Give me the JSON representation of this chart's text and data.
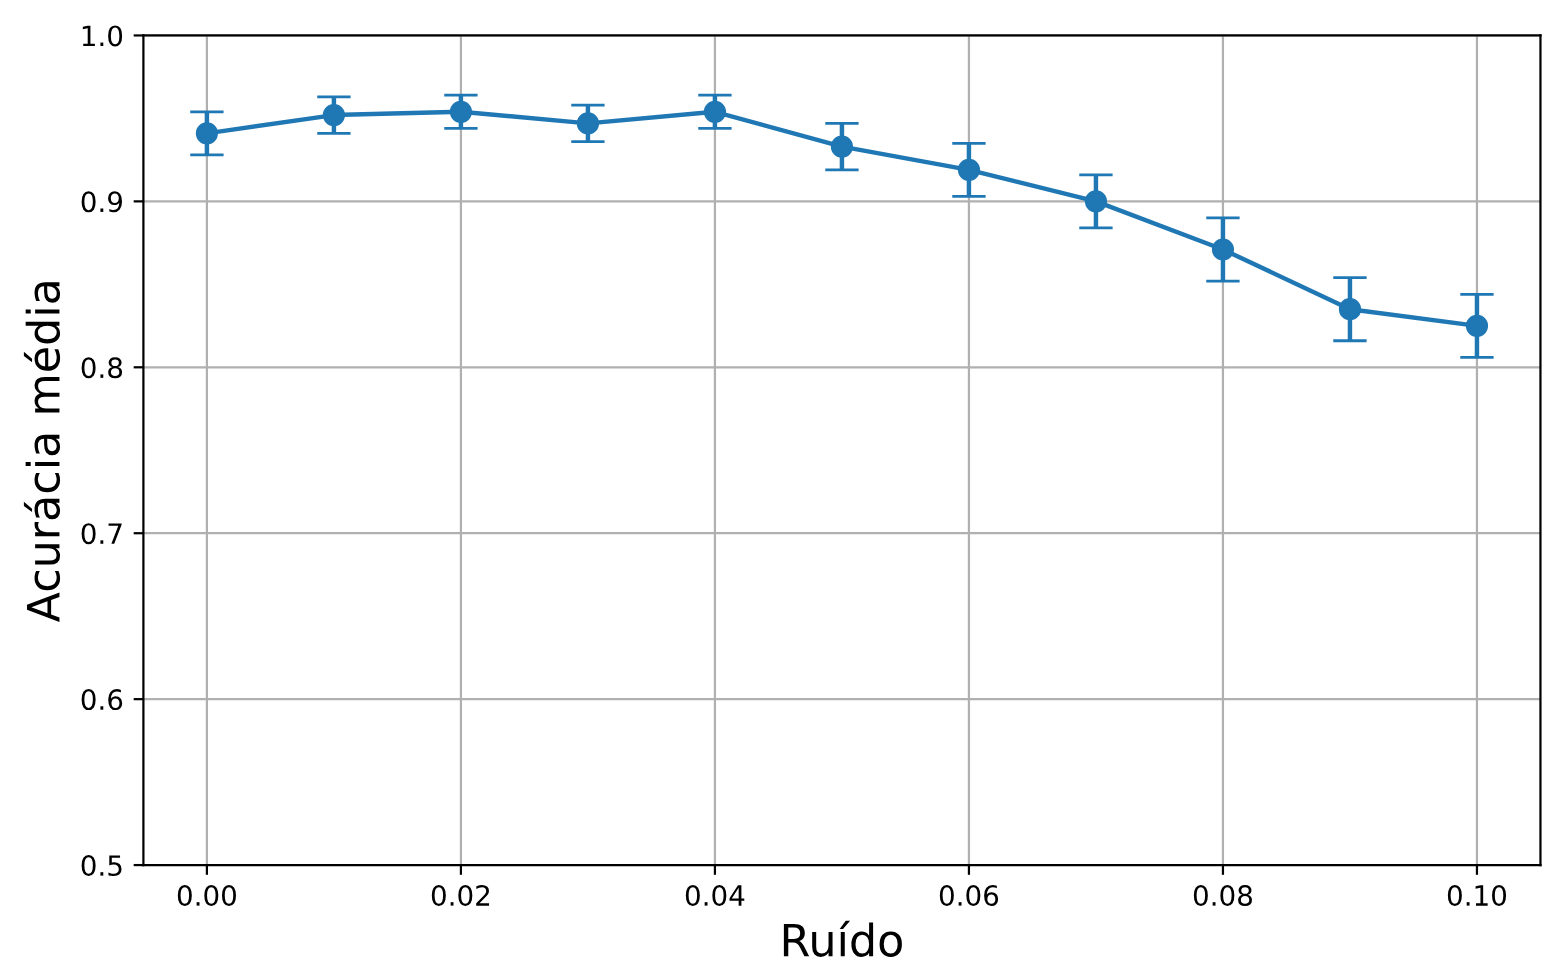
{
  "chart_data": {
    "type": "line",
    "xlabel": "Ruído",
    "ylabel": "Acurácia média",
    "x": [
      0.0,
      0.01,
      0.02,
      0.03,
      0.04,
      0.05,
      0.06,
      0.07,
      0.08,
      0.09,
      0.1
    ],
    "series": [
      {
        "color": "#1f77b4",
        "values": [
          0.941,
          0.952,
          0.954,
          0.947,
          0.954,
          0.933,
          0.919,
          0.9,
          0.871,
          0.835,
          0.825
        ],
        "errors": [
          0.013,
          0.011,
          0.01,
          0.011,
          0.01,
          0.014,
          0.016,
          0.016,
          0.019,
          0.019,
          0.019
        ]
      }
    ],
    "xlim": [
      -0.005,
      0.105
    ],
    "ylim": [
      0.5,
      1.0
    ],
    "xticks": [
      {
        "value": 0,
        "label": "0.00"
      },
      {
        "value": 0.02,
        "label": "0.02"
      },
      {
        "value": 0.04,
        "label": "0.04"
      },
      {
        "value": 0.06,
        "label": "0.06"
      },
      {
        "value": 0.08,
        "label": "0.08"
      },
      {
        "value": 0.1,
        "label": "0.10"
      }
    ],
    "yticks": [
      0.5,
      0.6,
      0.7,
      0.8,
      0.9,
      {
        "value": 1.0,
        "label": "1.0"
      }
    ],
    "grid": true,
    "marker": "circle",
    "line_style": "solid"
  }
}
